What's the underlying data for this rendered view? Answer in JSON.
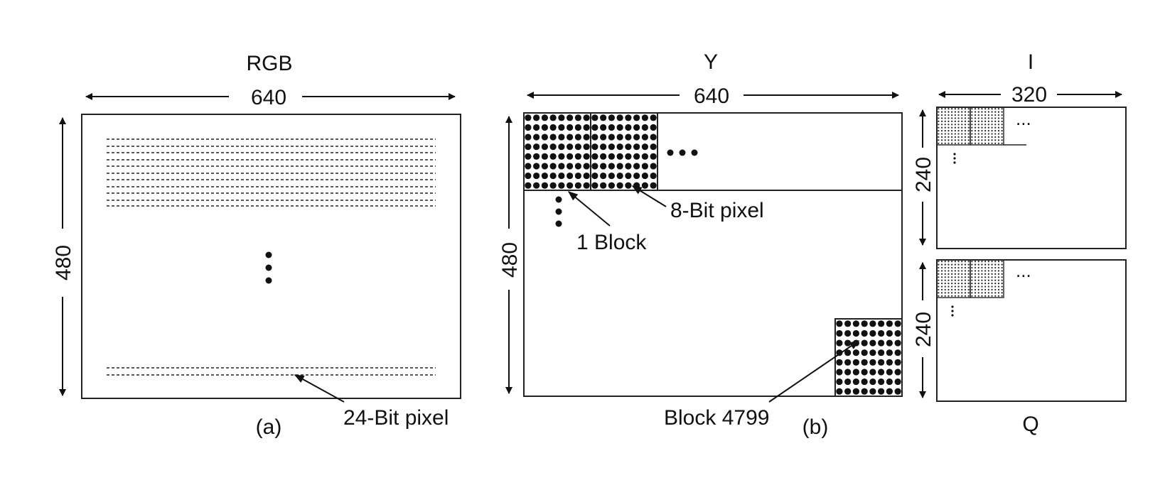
{
  "panel_a": {
    "title": "RGB",
    "width_label": "640",
    "height_label": "480",
    "pixel_label": "24-Bit pixel",
    "caption": "(a)"
  },
  "panel_b": {
    "title": "Y",
    "width_label": "640",
    "height_label": "480",
    "pixel_label": "8-Bit pixel",
    "block_label": "1 Block",
    "last_block_label": "Block 4799",
    "caption": "(b)"
  },
  "panel_i": {
    "title": "I",
    "width_label": "320",
    "height_label": "240"
  },
  "panel_q": {
    "title": "Q",
    "height_label": "240"
  },
  "ellipsis": "..."
}
